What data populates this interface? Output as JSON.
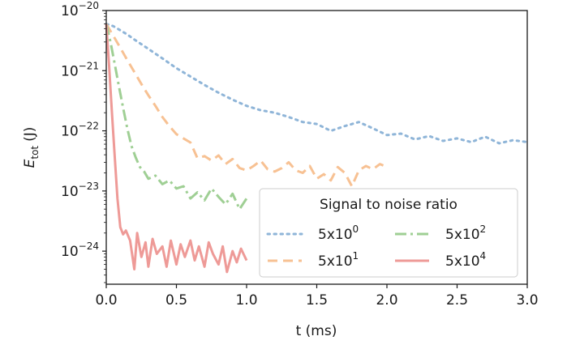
{
  "chart_data": {
    "type": "line",
    "xlabel": "t (ms)",
    "ylabel_main": "E",
    "ylabel_sub": "tot",
    "ylabel_unit": "(J)",
    "xlim": [
      0.0,
      3.0
    ],
    "ylim_log10": [
      -24.55,
      -20.0
    ],
    "yscale": "log",
    "grid": false,
    "x_ticks": [
      {
        "value": 0.0,
        "label": "0.0"
      },
      {
        "value": 0.5,
        "label": "0.5"
      },
      {
        "value": 1.0,
        "label": "1.0"
      },
      {
        "value": 1.5,
        "label": "1.5"
      },
      {
        "value": 2.0,
        "label": "2.0"
      },
      {
        "value": 2.5,
        "label": "2.5"
      },
      {
        "value": 3.0,
        "label": "3.0"
      }
    ],
    "y_ticks": [
      {
        "exp": -20,
        "base": "10",
        "sup": "−20"
      },
      {
        "exp": -21,
        "base": "10",
        "sup": "−21"
      },
      {
        "exp": -22,
        "base": "10",
        "sup": "−22"
      },
      {
        "exp": -23,
        "base": "10",
        "sup": "−23"
      },
      {
        "exp": -24,
        "base": "10",
        "sup": "−24"
      }
    ],
    "legend": {
      "title": "Signal to noise ratio",
      "placement": "lower-right"
    },
    "series": [
      {
        "name_base": "5x10",
        "name_sup": "0",
        "color": "#8fb5d8",
        "dash": "dotted",
        "x": [
          0.0,
          0.05,
          0.1,
          0.15,
          0.2,
          0.3,
          0.4,
          0.5,
          0.6,
          0.7,
          0.8,
          0.9,
          1.0,
          1.1,
          1.2,
          1.3,
          1.4,
          1.5,
          1.6,
          1.7,
          1.8,
          1.9,
          2.0,
          2.1,
          2.2,
          2.3,
          2.4,
          2.5,
          2.6,
          2.7,
          2.8,
          2.9,
          3.0
        ],
        "y": [
          6e-21,
          5.5e-21,
          4.7e-21,
          4e-21,
          3.3e-21,
          2.3e-21,
          1.6e-21,
          1.1e-21,
          8e-22,
          5.8e-22,
          4.3e-22,
          3.3e-22,
          2.6e-22,
          2.2e-22,
          2e-22,
          1.7e-22,
          1.4e-22,
          1.3e-22,
          1e-22,
          1.2e-22,
          1.4e-22,
          1.1e-22,
          8.5e-23,
          9e-23,
          7.2e-23,
          8.2e-23,
          6.8e-23,
          7.5e-23,
          6.5e-23,
          8e-23,
          6.2e-23,
          7e-23,
          6.5e-23
        ]
      },
      {
        "name_base": "5x10",
        "name_sup": "1",
        "color": "#f7c193",
        "dash": "dashed",
        "x": [
          0.0,
          0.05,
          0.1,
          0.15,
          0.2,
          0.25,
          0.3,
          0.35,
          0.4,
          0.45,
          0.5,
          0.55,
          0.6,
          0.65,
          0.7,
          0.75,
          0.8,
          0.85,
          0.9,
          0.95,
          1.0,
          1.05,
          1.1,
          1.15,
          1.2,
          1.25,
          1.3,
          1.35,
          1.4,
          1.45,
          1.5,
          1.55,
          1.6,
          1.65,
          1.7,
          1.75,
          1.8,
          1.85,
          1.9,
          1.95,
          2.0
        ],
        "y": [
          6e-21,
          3.8e-21,
          2.4e-21,
          1.5e-21,
          9.5e-22,
          6e-22,
          3.9e-22,
          2.6e-22,
          1.7e-22,
          1.2e-22,
          8.8e-23,
          7.5e-23,
          6.4e-23,
          3.5e-23,
          3.8e-23,
          3.2e-23,
          3.9e-23,
          2.8e-23,
          3.4e-23,
          2.4e-23,
          2.2e-23,
          2.6e-23,
          3.2e-23,
          2.3e-23,
          2.1e-23,
          2.4e-23,
          3e-23,
          2.2e-23,
          2e-23,
          2.6e-23,
          1.6e-23,
          1.9e-23,
          1.5e-23,
          2.5e-23,
          2e-23,
          1.2e-23,
          2.2e-23,
          2.6e-23,
          2.3e-23,
          2.8e-23,
          2.5e-23
        ]
      },
      {
        "name_base": "5x10",
        "name_sup": "2",
        "color": "#9fcf94",
        "dash": "dashdot",
        "x": [
          0.0,
          0.03,
          0.06,
          0.09,
          0.12,
          0.15,
          0.18,
          0.21,
          0.24,
          0.27,
          0.3,
          0.35,
          0.4,
          0.45,
          0.5,
          0.55,
          0.6,
          0.65,
          0.7,
          0.75,
          0.8,
          0.85,
          0.9,
          0.95,
          1.0
        ],
        "y": [
          6e-21,
          3e-21,
          1.3e-21,
          5.5e-22,
          2.4e-22,
          1.1e-22,
          5.6e-23,
          3.6e-23,
          2.5e-23,
          2.1e-23,
          1.6e-23,
          1.8e-23,
          1.3e-23,
          1.5e-23,
          1.1e-23,
          1.2e-23,
          7.5e-24,
          9.5e-24,
          7e-24,
          1.1e-23,
          8e-24,
          6e-24,
          9e-24,
          5e-24,
          7.5e-24
        ]
      },
      {
        "name_base": "5x10",
        "name_sup": "4",
        "color": "#ee9a97",
        "dash": "solid",
        "x": [
          0.0,
          0.02,
          0.04,
          0.06,
          0.08,
          0.1,
          0.12,
          0.14,
          0.17,
          0.2,
          0.22,
          0.25,
          0.28,
          0.3,
          0.33,
          0.36,
          0.4,
          0.43,
          0.46,
          0.5,
          0.53,
          0.56,
          0.6,
          0.63,
          0.66,
          0.7,
          0.73,
          0.76,
          0.8,
          0.83,
          0.86,
          0.9,
          0.93,
          0.96,
          1.0
        ],
        "y": [
          6e-21,
          1.2e-21,
          2.1e-22,
          3.8e-23,
          7.5e-24,
          2.5e-24,
          1.9e-24,
          2.2e-24,
          1.5e-24,
          5e-25,
          2e-24,
          8e-25,
          1.4e-24,
          5.5e-25,
          1.6e-24,
          9e-25,
          1.2e-24,
          5.5e-25,
          1.5e-24,
          6e-25,
          1.3e-24,
          8e-25,
          1.5e-24,
          7e-25,
          1.2e-24,
          5.5e-25,
          1.4e-24,
          9e-25,
          6e-25,
          1.2e-24,
          4.5e-25,
          1e-24,
          6.5e-25,
          1.1e-24,
          7e-25
        ]
      }
    ]
  }
}
